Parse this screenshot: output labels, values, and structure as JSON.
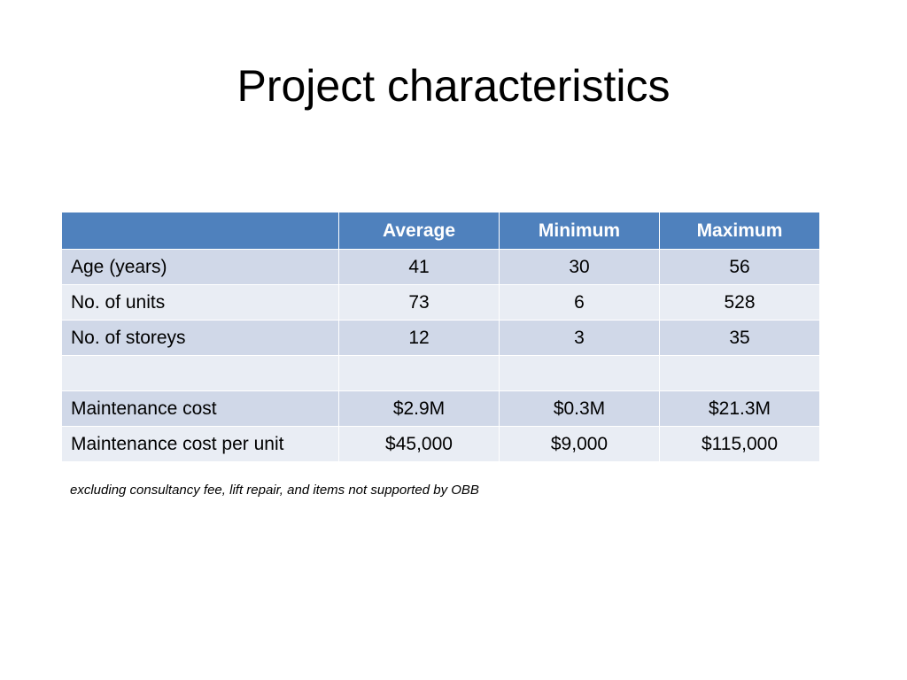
{
  "title": "Project characteristics",
  "table": {
    "headers": [
      "",
      "Average",
      "Minimum",
      "Maximum"
    ],
    "rows": [
      {
        "label": "Age (years)",
        "average": "41",
        "minimum": "30",
        "maximum": "56"
      },
      {
        "label": "No. of units",
        "average": "73",
        "minimum": "6",
        "maximum": "528"
      },
      {
        "label": "No. of storeys",
        "average": "12",
        "minimum": "3",
        "maximum": "35"
      },
      {
        "label": "",
        "average": "",
        "minimum": "",
        "maximum": ""
      },
      {
        "label": "Maintenance cost",
        "average": "$2.9M",
        "minimum": "$0.3M",
        "maximum": "$21.3M"
      },
      {
        "label": "Maintenance cost per unit",
        "average": "$45,000",
        "minimum": "$9,000",
        "maximum": "$115,000"
      }
    ]
  },
  "footnote": "excluding consultancy fee, lift repair, and items not supported by OBB",
  "colors": {
    "header_bg": "#4f81bd",
    "row_dark": "#d0d8e8",
    "row_light": "#e9edf4"
  }
}
